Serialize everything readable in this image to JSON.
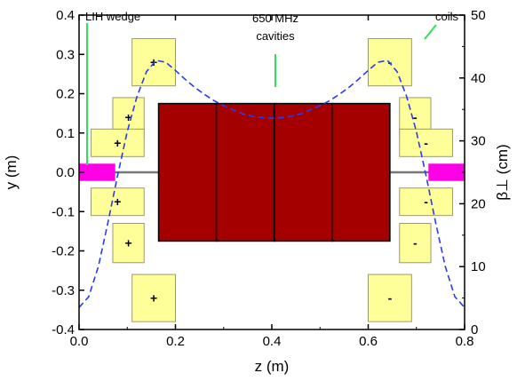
{
  "chart_data": {
    "type": "line",
    "xlabel": "z (m)",
    "ylabel_left": "y (m)",
    "ylabel_right": "β⊥ (cm)",
    "xlim": [
      0.0,
      0.8
    ],
    "ylim_left": [
      -0.4,
      0.4
    ],
    "ylim_right": [
      0,
      50
    ],
    "x_ticks": [
      0.0,
      0.2,
      0.4,
      0.6,
      0.8
    ],
    "y_ticks_left": [
      -0.4,
      -0.3,
      -0.2,
      -0.1,
      0.0,
      0.1,
      0.2,
      0.3,
      0.4
    ],
    "y_ticks_right": [
      0,
      10,
      20,
      30,
      40,
      50
    ],
    "x_tick_labels": [
      "0.0",
      "0.2",
      "0.4",
      "0.6",
      "0.8"
    ],
    "y_tick_labels_left": [
      "-0.4",
      "-0.3",
      "-0.2",
      "-0.1",
      "0.0",
      "0.1",
      "0.2",
      "0.3",
      "0.4"
    ],
    "y_tick_labels_right": [
      "0",
      "10",
      "20",
      "30",
      "40",
      "50"
    ],
    "series": [
      {
        "axis": "right",
        "style": "dashed",
        "color": "#2a3cf0",
        "x": [
          0.0,
          0.02,
          0.04,
          0.06,
          0.08,
          0.1,
          0.12,
          0.14,
          0.16,
          0.18,
          0.2,
          0.22,
          0.24,
          0.26,
          0.28,
          0.3,
          0.32,
          0.34,
          0.36,
          0.38,
          0.4,
          0.42,
          0.44,
          0.46,
          0.48,
          0.5,
          0.52,
          0.54,
          0.56,
          0.58,
          0.6,
          0.62,
          0.64,
          0.66,
          0.68,
          0.7,
          0.72,
          0.74,
          0.76,
          0.78,
          0.8
        ],
        "y": [
          3.5,
          5.2,
          10.0,
          17.0,
          24.5,
          31.5,
          37.0,
          41.0,
          42.8,
          42.5,
          41.2,
          39.8,
          38.5,
          37.4,
          36.4,
          35.6,
          34.9,
          34.3,
          33.9,
          33.7,
          33.6,
          33.7,
          33.9,
          34.3,
          34.9,
          35.6,
          36.4,
          37.4,
          38.5,
          39.8,
          41.2,
          42.5,
          42.8,
          41.0,
          37.0,
          31.5,
          24.5,
          17.0,
          10.0,
          5.2,
          3.5
        ]
      }
    ],
    "cavities": {
      "color": "#a50000",
      "z_edges": [
        0.165,
        0.285,
        0.405,
        0.525,
        0.645
      ],
      "y_range": [
        -0.175,
        0.175
      ]
    },
    "absorbers": {
      "color": "#ff00e6",
      "items": [
        {
          "z": [
            0.0,
            0.075
          ],
          "y": [
            -0.022,
            0.022
          ]
        },
        {
          "z": [
            0.725,
            0.8
          ],
          "y": [
            -0.022,
            0.022
          ]
        }
      ]
    },
    "coils": {
      "color": "#ffff99",
      "items": [
        {
          "z": [
            0.11,
            0.2
          ],
          "y": [
            0.22,
            0.34
          ],
          "sign": "+"
        },
        {
          "z": [
            0.07,
            0.135
          ],
          "y": [
            0.09,
            0.19
          ],
          "sign": "+"
        },
        {
          "z": [
            0.025,
            0.135
          ],
          "y": [
            0.04,
            0.11
          ],
          "sign": "+"
        },
        {
          "z": [
            0.025,
            0.135
          ],
          "y": [
            -0.11,
            -0.04
          ],
          "sign": "+"
        },
        {
          "z": [
            0.07,
            0.135
          ],
          "y": [
            -0.23,
            -0.13
          ],
          "sign": "+"
        },
        {
          "z": [
            0.11,
            0.2
          ],
          "y": [
            -0.38,
            -0.26
          ],
          "sign": "+"
        },
        {
          "z": [
            0.6,
            0.69
          ],
          "y": [
            0.22,
            0.34
          ],
          "sign": "-"
        },
        {
          "z": [
            0.665,
            0.73
          ],
          "y": [
            0.09,
            0.19
          ],
          "sign": "-"
        },
        {
          "z": [
            0.665,
            0.775
          ],
          "y": [
            0.04,
            0.11
          ],
          "sign": "-"
        },
        {
          "z": [
            0.665,
            0.775
          ],
          "y": [
            -0.11,
            -0.04
          ],
          "sign": "-"
        },
        {
          "z": [
            0.665,
            0.73
          ],
          "y": [
            -0.23,
            -0.13
          ],
          "sign": "-"
        },
        {
          "z": [
            0.6,
            0.69
          ],
          "y": [
            -0.38,
            -0.26
          ],
          "sign": "-"
        }
      ]
    },
    "annotations": [
      {
        "text": "LIH wedge"
      },
      {
        "text": "650 MHz"
      },
      {
        "text": "cavities"
      },
      {
        "text": "coils"
      }
    ]
  }
}
